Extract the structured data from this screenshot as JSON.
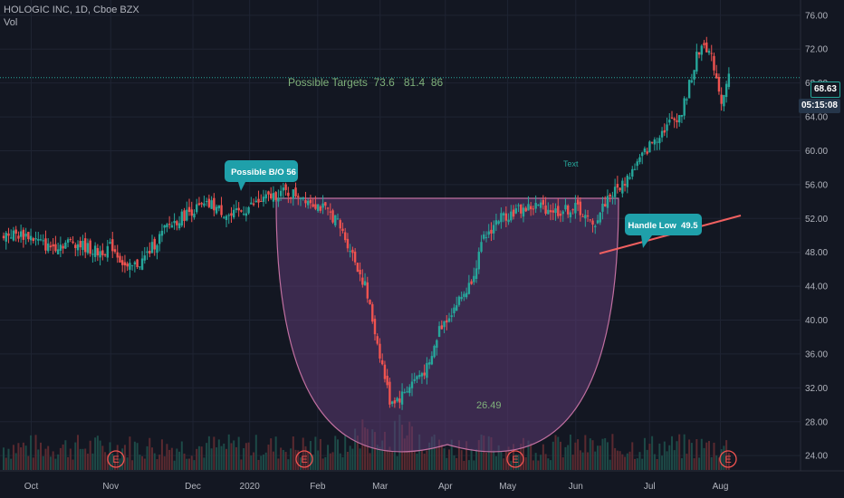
{
  "header": {
    "title": "HOLOGIC INC, 1D, Cboe BZX",
    "sub": "Vol"
  },
  "price_tag": {
    "value": "68.63",
    "color": "#ffffff",
    "bg": "#131722"
  },
  "timer_tag": {
    "value": "05:15:08",
    "color": "#ffffff",
    "bg": "#26364a"
  },
  "annotations": {
    "targets": "Possible Targets  73.6   81.4  86",
    "bo": "Possible B/O 56",
    "handle": "Handle Low  49.5",
    "text": "Text",
    "depth": "26.49"
  },
  "earnings_marker": "E",
  "colors": {
    "bg": "#131722",
    "grid": "#1f2433",
    "up": "#26a69a",
    "down": "#ef5350",
    "cup_fill": "#5c3a73",
    "cup_stroke": "#c06fa0",
    "trend": "#f06060",
    "callout": "#1fa0aa",
    "targets_text": "#7fb07a",
    "target_line": "#26a69a"
  },
  "chart_data": {
    "type": "candlestick",
    "yaxis": {
      "ticks": [
        24,
        28,
        32,
        36,
        40,
        44,
        48,
        52,
        56,
        60,
        64,
        68,
        72,
        76
      ],
      "labels": [
        "24.00",
        "28.00",
        "32.00",
        "36.00",
        "40.00",
        "44.00",
        "48.00",
        "52.00",
        "56.00",
        "60.00",
        "64.00",
        "68.00",
        "72.00",
        "76.00"
      ],
      "ylim": [
        22.2,
        77.8
      ]
    },
    "xaxis": {
      "labels": [
        "Oct",
        "Nov",
        "Dec",
        "2020",
        "Feb",
        "Mar",
        "Apr",
        "May",
        "Jun",
        "Jul",
        "Aug"
      ]
    },
    "last_price": 68.63,
    "target_line": 68.63,
    "close_points": [
      {
        "t": 0,
        "v": 50.2
      },
      {
        "t": 10,
        "v": 50.0
      },
      {
        "t": 18,
        "v": 48.6
      },
      {
        "t": 28,
        "v": 49.3
      },
      {
        "t": 38,
        "v": 48.0
      },
      {
        "t": 44,
        "v": 48.7
      },
      {
        "t": 50,
        "v": 45.9
      },
      {
        "t": 56,
        "v": 47.0
      },
      {
        "t": 66,
        "v": 51.0
      },
      {
        "t": 76,
        "v": 53.0
      },
      {
        "t": 84,
        "v": 53.6
      },
      {
        "t": 92,
        "v": 52.2
      },
      {
        "t": 102,
        "v": 53.8
      },
      {
        "t": 112,
        "v": 55.1
      },
      {
        "t": 120,
        "v": 54.8
      },
      {
        "t": 128,
        "v": 53.4
      },
      {
        "t": 134,
        "v": 52.0
      },
      {
        "t": 140,
        "v": 48.5
      },
      {
        "t": 146,
        "v": 44.0
      },
      {
        "t": 152,
        "v": 36.0
      },
      {
        "t": 156,
        "v": 30.5
      },
      {
        "t": 160,
        "v": 30.8
      },
      {
        "t": 166,
        "v": 33.0
      },
      {
        "t": 172,
        "v": 34.5
      },
      {
        "t": 176,
        "v": 39.0
      },
      {
        "t": 182,
        "v": 41.5
      },
      {
        "t": 188,
        "v": 44.0
      },
      {
        "t": 194,
        "v": 49.5
      },
      {
        "t": 200,
        "v": 52.0
      },
      {
        "t": 208,
        "v": 53.0
      },
      {
        "t": 216,
        "v": 53.5
      },
      {
        "t": 224,
        "v": 52.8
      },
      {
        "t": 232,
        "v": 53.3
      },
      {
        "t": 238,
        "v": 51.0
      },
      {
        "t": 244,
        "v": 54.5
      },
      {
        "t": 250,
        "v": 56.0
      },
      {
        "t": 256,
        "v": 58.5
      },
      {
        "t": 262,
        "v": 61.0
      },
      {
        "t": 268,
        "v": 63.0
      },
      {
        "t": 274,
        "v": 64.5
      },
      {
        "t": 280,
        "v": 71.0
      },
      {
        "t": 283,
        "v": 73.0
      },
      {
        "t": 287,
        "v": 70.0
      },
      {
        "t": 290,
        "v": 66.0
      },
      {
        "t": 293,
        "v": 68.63
      }
    ]
  }
}
